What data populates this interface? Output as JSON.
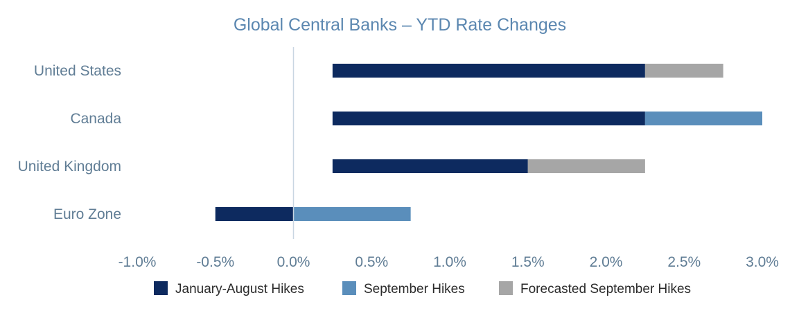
{
  "chart_data": {
    "type": "bar",
    "orientation": "horizontal",
    "stacked": "floating",
    "title": "Global Central Banks – YTD Rate  Changes",
    "xlabel": "",
    "ylabel": "",
    "xlim": [
      -1.0,
      3.0
    ],
    "x_ticks": [
      -1.0,
      -0.5,
      0.0,
      0.5,
      1.0,
      1.5,
      2.0,
      2.5,
      3.0
    ],
    "x_tick_labels": [
      "-1.0%",
      "-0.5%",
      "0.0%",
      "0.5%",
      "1.0%",
      "1.5%",
      "2.0%",
      "2.5%",
      "3.0%"
    ],
    "categories": [
      "United States",
      "Canada",
      "United Kingdom",
      "Euro Zone"
    ],
    "series": [
      {
        "name": "January-August Hikes",
        "color": "#0d2a5f",
        "segments": [
          [
            0.25,
            2.25
          ],
          [
            0.25,
            2.25
          ],
          [
            0.25,
            1.5
          ],
          [
            -0.5,
            0.0
          ]
        ]
      },
      {
        "name": "September Hikes",
        "color": "#5a8ebb",
        "segments": [
          null,
          [
            2.25,
            3.0
          ],
          null,
          [
            0.0,
            0.75
          ]
        ]
      },
      {
        "name": "Forecasted September Hikes",
        "color": "#a6a6a6",
        "segments": [
          [
            2.25,
            2.75
          ],
          null,
          [
            1.5,
            2.25
          ],
          null
        ]
      }
    ],
    "zero_line": true,
    "grid": false,
    "legend_position": "bottom"
  }
}
